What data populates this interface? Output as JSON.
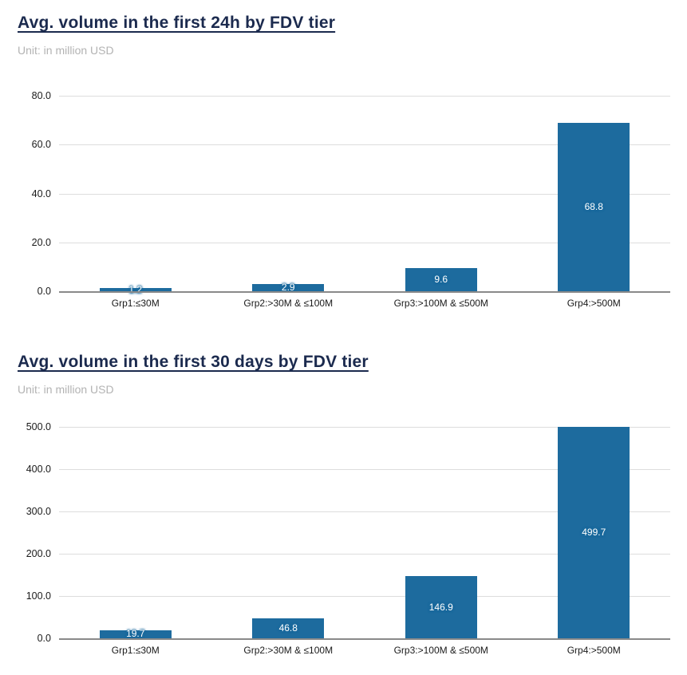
{
  "colors": {
    "bar": "#1d6b9e",
    "title": "#1b2a4e",
    "subtitle": "#b3b3b3",
    "gridline": "#dddddd",
    "baseline": "#8a8a8a",
    "tick_label": "#1a1a1a",
    "value_label": "#ffffff",
    "background": "#ffffff"
  },
  "chart_data": [
    {
      "type": "bar",
      "title": "Avg. volume in the first 24h by FDV tier",
      "subtitle": "Unit: in million USD",
      "categories": [
        "Grp1:≤30M",
        "Grp2:>30M & ≤100M",
        "Grp3:>100M & ≤500M",
        "Grp4:>500M"
      ],
      "values": [
        1.2,
        2.9,
        9.6,
        68.8
      ],
      "value_labels": [
        "1.2",
        "2.9",
        "9.6",
        "68.8"
      ],
      "xlabel": "",
      "ylabel": "",
      "ylim": [
        0,
        80
      ],
      "ytick_values": [
        80,
        60,
        40,
        20,
        0
      ],
      "ytick_labels": [
        "80.0",
        "60.0",
        "40.0",
        "20.0",
        "0.0"
      ],
      "grid": true,
      "legend": "none"
    },
    {
      "type": "bar",
      "title": "Avg. volume in the first 30 days by FDV tier",
      "subtitle": "Unit: in million USD",
      "categories": [
        "Grp1:≤30M",
        "Grp2:>30M & ≤100M",
        "Grp3:>100M & ≤500M",
        "Grp4:>500M"
      ],
      "values": [
        19.7,
        46.8,
        146.9,
        499.7
      ],
      "value_labels": [
        "19.7",
        "46.8",
        "146.9",
        "499.7"
      ],
      "xlabel": "",
      "ylabel": "",
      "ylim": [
        0,
        500
      ],
      "ytick_values": [
        500,
        400,
        300,
        200,
        100,
        0
      ],
      "ytick_labels": [
        "500.0",
        "400.0",
        "300.0",
        "200.0",
        "100.0",
        "0.0"
      ],
      "grid": true,
      "legend": "none"
    }
  ]
}
